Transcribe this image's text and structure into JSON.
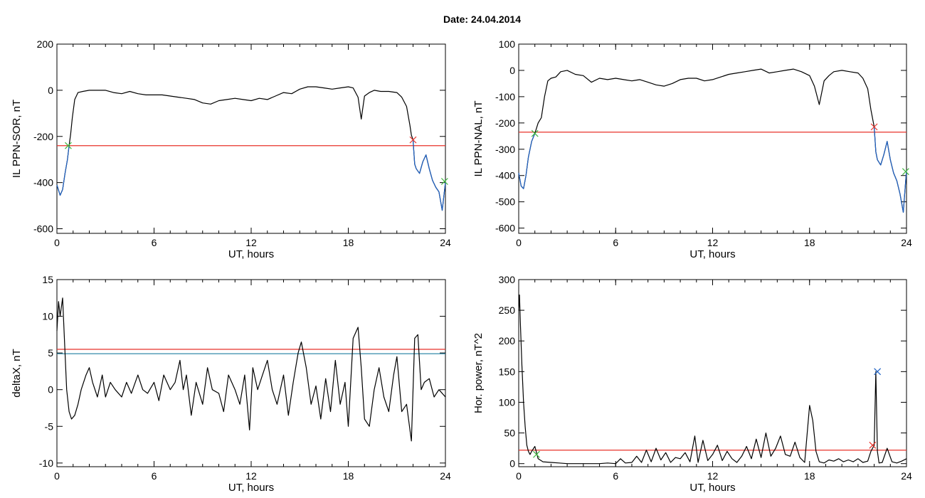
{
  "header": {
    "date_label": "Date:  24.04.2014"
  },
  "chart_data": [
    {
      "type": "line",
      "ylabel": "IL PPN-SOR, nT",
      "xlabel": "UT, hours",
      "xlim": [
        0,
        24
      ],
      "ylim": [
        -620,
        200
      ],
      "xticks": [
        "0",
        "6",
        "12",
        "18",
        "24"
      ],
      "yticks": [
        {
          "v": 200,
          "label": "200"
        },
        {
          "v": 0,
          "label": "0"
        },
        {
          "v": -200,
          "label": "-200"
        },
        {
          "v": -400,
          "label": "-400"
        },
        {
          "v": -600,
          "label": "-600"
        }
      ],
      "hlines": [
        {
          "y": -240,
          "color": "#e8322a"
        }
      ],
      "series": [
        {
          "color": "#000000",
          "x": [
            0,
            0.2,
            0.35,
            0.5,
            0.65,
            0.75,
            0.85,
            0.95,
            1.1,
            1.3,
            1.6,
            2,
            2.5,
            3,
            3.5,
            4,
            4.5,
            5,
            5.5,
            6,
            6.5,
            7,
            7.5,
            8,
            8.5,
            9,
            9.5,
            10,
            10.5,
            11,
            11.5,
            12,
            12.5,
            13,
            13.5,
            14,
            14.5,
            15,
            15.5,
            16,
            16.5,
            17,
            17.5,
            18,
            18.3,
            18.6,
            18.8,
            19,
            19.3,
            19.6,
            20,
            20.5,
            21,
            21.3,
            21.6,
            21.8,
            21.9,
            22,
            22.1,
            22.2,
            22.4,
            22.6,
            22.8,
            23,
            23.2,
            23.4,
            23.6,
            23.8,
            24
          ],
          "y": [
            -410,
            -455,
            -430,
            -360,
            -300,
            -240,
            -190,
            -120,
            -40,
            -10,
            -5,
            0,
            0,
            0,
            -10,
            -15,
            -5,
            -15,
            -20,
            -20,
            -20,
            -25,
            -30,
            -35,
            -40,
            -55,
            -60,
            -45,
            -40,
            -35,
            -40,
            -45,
            -35,
            -40,
            -25,
            -10,
            -15,
            5,
            15,
            15,
            10,
            5,
            10,
            15,
            10,
            -30,
            -125,
            -25,
            -10,
            0,
            -5,
            -5,
            -10,
            -30,
            -70,
            -150,
            -195,
            -215,
            -320,
            -340,
            -360,
            -310,
            -280,
            -340,
            -390,
            -420,
            -440,
            -520,
            -400
          ]
        },
        {
          "color": "#1f62c4",
          "x": [
            0,
            0.2,
            0.35,
            0.5,
            0.65,
            0.75
          ],
          "y": [
            -410,
            -455,
            -430,
            -360,
            -300,
            -240
          ]
        },
        {
          "color": "#1f62c4",
          "x": [
            22,
            22.1,
            22.2,
            22.4,
            22.6,
            22.8,
            23,
            23.2,
            23.4,
            23.6,
            23.8,
            24
          ],
          "y": [
            -215,
            -320,
            -340,
            -360,
            -310,
            -280,
            -340,
            -390,
            -420,
            -440,
            -520,
            -400
          ]
        }
      ],
      "markers": [
        {
          "x": 0.7,
          "y": -240,
          "color": "#3cb43c"
        },
        {
          "x": 22.0,
          "y": -215,
          "color": "#e8322a"
        },
        {
          "x": 23.95,
          "y": -395,
          "color": "#3cb43c"
        }
      ]
    },
    {
      "type": "line",
      "ylabel": "IL PPN-NAL, nT",
      "xlabel": "UT, hours",
      "xlim": [
        0,
        24
      ],
      "ylim": [
        -620,
        100
      ],
      "xticks": [
        "0",
        "6",
        "12",
        "18",
        "24"
      ],
      "yticks": [
        {
          "v": 100,
          "label": "100"
        },
        {
          "v": 0,
          "label": "0"
        },
        {
          "v": -100,
          "label": "-100"
        },
        {
          "v": -200,
          "label": "-200"
        },
        {
          "v": -300,
          "label": "-300"
        },
        {
          "v": -400,
          "label": "-400"
        },
        {
          "v": -500,
          "label": "-500"
        },
        {
          "v": -600,
          "label": "-600"
        }
      ],
      "hlines": [
        {
          "y": -235,
          "color": "#e8322a"
        }
      ],
      "series": [
        {
          "color": "#000000",
          "x": [
            0,
            0.15,
            0.3,
            0.45,
            0.6,
            0.8,
            1,
            1.2,
            1.4,
            1.6,
            1.8,
            2,
            2.3,
            2.6,
            3,
            3.5,
            4,
            4.5,
            5,
            5.5,
            6,
            6.5,
            7,
            7.5,
            8,
            8.5,
            9,
            9.5,
            10,
            10.5,
            11,
            11.5,
            12,
            12.5,
            13,
            13.5,
            14,
            14.5,
            15,
            15.5,
            16,
            16.5,
            17,
            17.5,
            18,
            18.3,
            18.6,
            18.9,
            19.2,
            19.5,
            20,
            20.5,
            21,
            21.3,
            21.6,
            21.8,
            22,
            22.1,
            22.2,
            22.4,
            22.6,
            22.8,
            23,
            23.2,
            23.4,
            23.6,
            23.8,
            24
          ],
          "y": [
            -390,
            -440,
            -450,
            -400,
            -330,
            -270,
            -240,
            -200,
            -180,
            -100,
            -40,
            -30,
            -25,
            -5,
            0,
            -15,
            -20,
            -45,
            -30,
            -35,
            -30,
            -35,
            -40,
            -35,
            -45,
            -55,
            -60,
            -50,
            -35,
            -30,
            -30,
            -40,
            -35,
            -25,
            -15,
            -10,
            -5,
            0,
            5,
            -10,
            -5,
            0,
            5,
            -5,
            -20,
            -60,
            -130,
            -40,
            -20,
            -5,
            0,
            -5,
            -10,
            -30,
            -70,
            -150,
            -215,
            -310,
            -340,
            -360,
            -320,
            -270,
            -340,
            -390,
            -420,
            -470,
            -540,
            -380
          ]
        },
        {
          "color": "#1f62c4",
          "x": [
            0,
            0.15,
            0.3,
            0.45,
            0.6,
            0.8,
            1
          ],
          "y": [
            -390,
            -440,
            -450,
            -400,
            -330,
            -270,
            -240
          ]
        },
        {
          "color": "#1f62c4",
          "x": [
            22,
            22.1,
            22.2,
            22.4,
            22.6,
            22.8,
            23,
            23.2,
            23.4,
            23.6,
            23.8,
            24
          ],
          "y": [
            -215,
            -310,
            -340,
            -360,
            -320,
            -270,
            -340,
            -390,
            -420,
            -470,
            -540,
            -380
          ]
        }
      ],
      "markers": [
        {
          "x": 1.0,
          "y": -240,
          "color": "#3cb43c"
        },
        {
          "x": 22.0,
          "y": -215,
          "color": "#e8322a"
        },
        {
          "x": 23.95,
          "y": -385,
          "color": "#3cb43c"
        }
      ]
    },
    {
      "type": "line",
      "ylabel": "deltaX, nT",
      "xlabel": "UT, hours",
      "xlim": [
        0,
        24
      ],
      "ylim": [
        -10.5,
        15
      ],
      "xticks": [
        "0",
        "6",
        "12",
        "18",
        "24"
      ],
      "yticks": [
        {
          "v": 15,
          "label": "15"
        },
        {
          "v": 10,
          "label": "10"
        },
        {
          "v": 5,
          "label": "5"
        },
        {
          "v": 0,
          "label": "0"
        },
        {
          "v": -5,
          "label": "-5"
        },
        {
          "v": -10,
          "label": "-10"
        }
      ],
      "hlines": [
        {
          "y": 5.5,
          "color": "#e8322a"
        },
        {
          "y": 4.9,
          "color": "#1f7fa0"
        }
      ],
      "series": [
        {
          "color": "#000000",
          "x": [
            0,
            0.1,
            0.2,
            0.35,
            0.5,
            0.6,
            0.75,
            0.9,
            1.1,
            1.3,
            1.5,
            1.8,
            2,
            2.2,
            2.5,
            2.8,
            3,
            3.3,
            3.6,
            4,
            4.3,
            4.6,
            5,
            5.3,
            5.6,
            6,
            6.3,
            6.6,
            7,
            7.3,
            7.6,
            7.8,
            8,
            8.3,
            8.6,
            9,
            9.3,
            9.6,
            10,
            10.3,
            10.6,
            11,
            11.3,
            11.6,
            11.9,
            12.1,
            12.4,
            12.7,
            13,
            13.3,
            13.6,
            14,
            14.3,
            14.6,
            14.9,
            15.1,
            15.4,
            15.7,
            16,
            16.3,
            16.6,
            16.9,
            17.2,
            17.5,
            17.8,
            18,
            18.3,
            18.6,
            18.8,
            19,
            19.3,
            19.6,
            19.9,
            20.2,
            20.5,
            20.8,
            21,
            21.3,
            21.6,
            21.9,
            22.1,
            22.3,
            22.5,
            22.7,
            23,
            23.3,
            23.6,
            24
          ],
          "y": [
            8,
            12,
            10,
            12.5,
            5,
            0,
            -3,
            -4,
            -3.5,
            -2,
            0,
            2,
            3,
            1,
            -1,
            2,
            -1,
            1,
            0,
            -1,
            1,
            -0.5,
            2,
            0,
            -0.5,
            1,
            -1.5,
            2,
            0,
            1,
            4,
            0,
            2,
            -3.5,
            1,
            -2,
            3,
            0,
            -0.5,
            -3,
            2,
            0,
            -2,
            2,
            -5.5,
            3,
            0,
            2,
            4,
            0,
            -2,
            2,
            -3.5,
            1,
            5,
            6.5,
            3,
            -2,
            0.5,
            -4,
            1.5,
            -3,
            4,
            -2,
            1,
            -5,
            7,
            8.5,
            3,
            -4,
            -5,
            0,
            3,
            -1,
            -3,
            2,
            4.5,
            -3,
            -2,
            -7,
            7,
            7.5,
            0,
            1,
            1.5,
            -1,
            0,
            -1
          ]
        }
      ],
      "markers": []
    },
    {
      "type": "line",
      "ylabel": "Hor. power, nT^2",
      "xlabel": "UT, hours",
      "xlim": [
        0,
        24
      ],
      "ylim": [
        -5,
        300
      ],
      "xticks": [
        "0",
        "6",
        "12",
        "18",
        "24"
      ],
      "yticks": [
        {
          "v": 300,
          "label": "300"
        },
        {
          "v": 250,
          "label": "250"
        },
        {
          "v": 200,
          "label": "200"
        },
        {
          "v": 150,
          "label": "150"
        },
        {
          "v": 100,
          "label": "100"
        },
        {
          "v": 50,
          "label": "50"
        },
        {
          "v": 0,
          "label": "0"
        }
      ],
      "hlines": [
        {
          "y": 22,
          "color": "#e8322a"
        }
      ],
      "series": [
        {
          "color": "#000000",
          "x": [
            0,
            0.05,
            0.1,
            0.2,
            0.3,
            0.4,
            0.5,
            0.6,
            0.7,
            0.8,
            1,
            1.2,
            1.5,
            2,
            2.5,
            3,
            3.5,
            4,
            4.5,
            5,
            5.5,
            6,
            6.3,
            6.6,
            7,
            7.3,
            7.6,
            7.9,
            8.2,
            8.5,
            8.8,
            9.1,
            9.4,
            9.7,
            10,
            10.3,
            10.6,
            10.9,
            11.1,
            11.4,
            11.7,
            12,
            12.3,
            12.6,
            12.9,
            13.2,
            13.5,
            13.8,
            14.1,
            14.4,
            14.7,
            15,
            15.3,
            15.6,
            15.9,
            16.2,
            16.5,
            16.8,
            17.1,
            17.4,
            17.7,
            18,
            18.2,
            18.4,
            18.6,
            18.9,
            19.2,
            19.5,
            19.8,
            20.1,
            20.4,
            20.7,
            21,
            21.3,
            21.6,
            21.8,
            22,
            22.1,
            22.2,
            22.3,
            22.5,
            22.8,
            23.1,
            23.4,
            23.7,
            24
          ],
          "y": [
            250,
            275,
            230,
            160,
            100,
            60,
            30,
            20,
            15,
            20,
            28,
            8,
            3,
            2,
            1,
            0,
            0,
            0,
            0,
            0,
            1,
            0,
            8,
            1,
            2,
            12,
            2,
            22,
            3,
            25,
            6,
            18,
            2,
            10,
            8,
            18,
            3,
            45,
            2,
            38,
            5,
            15,
            30,
            5,
            20,
            8,
            2,
            12,
            28,
            8,
            40,
            10,
            50,
            12,
            25,
            45,
            15,
            12,
            35,
            10,
            2,
            95,
            70,
            20,
            3,
            1,
            6,
            4,
            8,
            3,
            6,
            3,
            8,
            2,
            4,
            20,
            30,
            150,
            20,
            1,
            2,
            25,
            3,
            1,
            4,
            8
          ]
        }
      ],
      "markers": [
        {
          "x": 1.1,
          "y": 15,
          "color": "#3cb43c"
        },
        {
          "x": 22.2,
          "y": 150,
          "color": "#1f62c4"
        },
        {
          "x": 21.9,
          "y": 30,
          "color": "#e8322a"
        }
      ]
    }
  ]
}
